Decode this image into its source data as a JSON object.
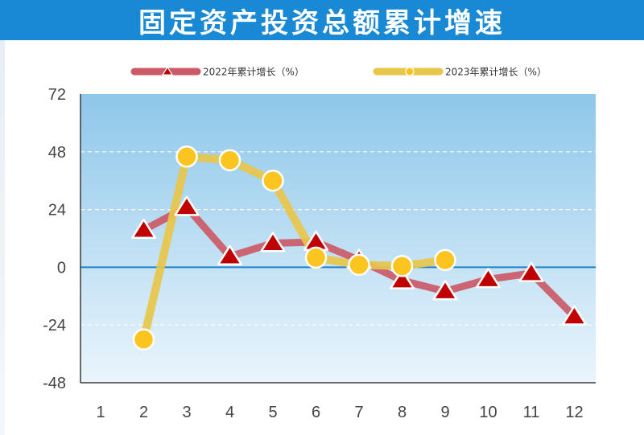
{
  "title": "固定资产投资总额累计增速",
  "chart_data": {
    "type": "line",
    "title": "固定资产投资总额累计增速",
    "x": [
      1,
      2,
      3,
      4,
      5,
      6,
      7,
      8,
      9,
      10,
      11,
      12
    ],
    "categories": [
      "1",
      "2",
      "3",
      "4",
      "5",
      "6",
      "7",
      "8",
      "9",
      "10",
      "11",
      "12"
    ],
    "yticks": [
      "72",
      "48",
      "24",
      "0",
      "-24",
      "-48"
    ],
    "ylim": [
      -48,
      72
    ],
    "grid": "horizontal dashed",
    "legend_position": "top",
    "series": [
      {
        "name": "2022年累计增长（%）",
        "marker": "triangle",
        "color": "#cc5a67",
        "marker_color": "#c00000",
        "values": [
          null,
          15.5,
          25,
          4.5,
          10,
          10.5,
          3,
          -5.5,
          -10,
          -5,
          -2.5,
          -20.5
        ]
      },
      {
        "name": "2023年累计增长（%）",
        "marker": "circle",
        "color": "#e8c64a",
        "marker_color": "#fbc41e",
        "values": [
          null,
          -30,
          46,
          44.5,
          36,
          4,
          1,
          0.5,
          3,
          null,
          null,
          null
        ]
      }
    ]
  }
}
